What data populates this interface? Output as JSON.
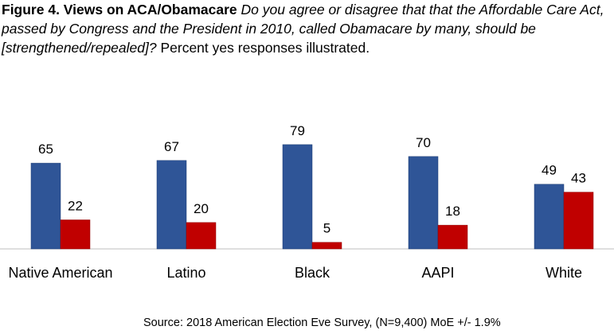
{
  "figure": {
    "label": "Figure 4. Views on ACA/Obamacare",
    "question": "Do you agree or disagree that that the Affordable Care Act, passed by Congress and the President in 2010, called Obamacare by many, should be [strengthened/repealed]?",
    "note": "Percent yes responses illustrated."
  },
  "source": "Source: 2018 American Election Eve Survey, (N=9,400) MoE +/- 1.9%",
  "colors": {
    "strengthened": "#2f5597",
    "repealed": "#c00000",
    "axis": "#bfbfbf"
  },
  "chart_data": {
    "type": "bar",
    "categories": [
      "Native American",
      "Latino",
      "Black",
      "AAPI",
      "White"
    ],
    "series": [
      {
        "values": [
          65,
          67,
          79,
          70,
          49
        ]
      },
      {
        "values": [
          22,
          20,
          5,
          18,
          43
        ]
      }
    ],
    "ylim": [
      0,
      90
    ],
    "grid": false,
    "legend": "none"
  }
}
